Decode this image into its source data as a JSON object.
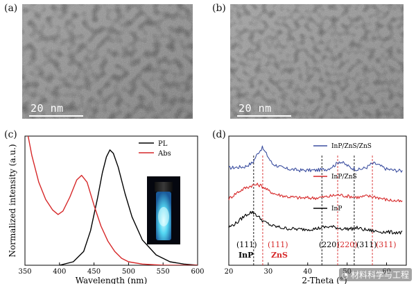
{
  "figure": {
    "panels": {
      "a": {
        "label": "(a)",
        "scalebar": "20 nm"
      },
      "b": {
        "label": "(b)",
        "scalebar": "20 nm"
      },
      "c": {
        "label": "(c)"
      },
      "d": {
        "label": "(d)"
      }
    },
    "watermark": "材料科学与工程"
  },
  "chart_data": [
    {
      "type": "line",
      "panel": "c",
      "xlabel": "Wavelength (nm)",
      "ylabel": "Normalized intensity (a.u.)",
      "xlim": [
        350,
        600
      ],
      "xticks": [
        350,
        400,
        450,
        500,
        550,
        600
      ],
      "ylim": [
        0,
        1.12
      ],
      "legend": "top-right",
      "series": [
        {
          "name": "PL",
          "color": "#000000",
          "x": [
            400,
            420,
            435,
            445,
            455,
            462,
            468,
            473,
            478,
            485,
            495,
            505,
            520,
            540,
            560,
            580,
            600
          ],
          "y": [
            0.0,
            0.03,
            0.12,
            0.3,
            0.58,
            0.8,
            0.94,
            1.0,
            0.97,
            0.85,
            0.62,
            0.42,
            0.22,
            0.09,
            0.03,
            0.01,
            0.0
          ]
        },
        {
          "name": "Abs",
          "color": "#d62728",
          "x": [
            352,
            360,
            370,
            380,
            390,
            398,
            405,
            415,
            425,
            432,
            440,
            450,
            460,
            470,
            480,
            490,
            500,
            520,
            550,
            600
          ],
          "y": [
            1.2,
            0.95,
            0.72,
            0.57,
            0.48,
            0.44,
            0.47,
            0.59,
            0.74,
            0.78,
            0.72,
            0.52,
            0.34,
            0.21,
            0.12,
            0.06,
            0.03,
            0.01,
            0.0,
            0.0
          ]
        }
      ]
    },
    {
      "type": "line",
      "panel": "d",
      "xlabel": "2-Theta (°)",
      "xlim": [
        20,
        65
      ],
      "xticks": [
        20,
        30,
        40,
        50,
        60
      ],
      "series": [
        {
          "name": "InP/ZnS/ZnS",
          "color": "#3c4fa0",
          "offset": 2.0,
          "x": [
            20,
            24,
            26,
            27.5,
            28.5,
            29.5,
            31,
            34,
            38,
            42,
            45,
            47,
            48,
            49,
            51,
            53,
            55,
            56,
            57,
            58,
            60,
            62,
            64
          ],
          "y": [
            0.18,
            0.22,
            0.35,
            0.7,
            0.85,
            0.65,
            0.32,
            0.16,
            0.1,
            0.1,
            0.14,
            0.28,
            0.4,
            0.34,
            0.18,
            0.12,
            0.2,
            0.3,
            0.33,
            0.27,
            0.14,
            0.1,
            0.08
          ]
        },
        {
          "name": "InP/ZnS",
          "color": "#d62728",
          "offset": 1.0,
          "x": [
            20,
            22,
            24,
            26,
            27,
            28,
            29,
            30,
            32,
            35,
            38,
            42,
            45,
            47,
            48,
            50,
            53,
            55,
            57,
            60,
            64
          ],
          "y": [
            0.15,
            0.35,
            0.5,
            0.6,
            0.62,
            0.6,
            0.52,
            0.42,
            0.3,
            0.22,
            0.18,
            0.18,
            0.22,
            0.27,
            0.28,
            0.24,
            0.2,
            0.24,
            0.22,
            0.12,
            0.05
          ]
        },
        {
          "name": "InP",
          "color": "#000000",
          "offset": 0.0,
          "x": [
            20,
            22,
            24,
            25.5,
            26.5,
            27.5,
            29,
            31,
            34,
            38,
            42,
            44,
            45.5,
            47,
            49,
            51,
            52.5,
            54,
            57,
            60,
            64
          ],
          "y": [
            0.2,
            0.35,
            0.58,
            0.7,
            0.68,
            0.55,
            0.38,
            0.25,
            0.17,
            0.13,
            0.15,
            0.2,
            0.22,
            0.2,
            0.15,
            0.15,
            0.18,
            0.13,
            0.07,
            0.04,
            0.02
          ]
        }
      ],
      "reference_lines": [
        {
          "name": "InP",
          "color": "#000000",
          "positions": [
            26.3,
            43.6,
            51.8
          ]
        },
        {
          "name": "ZnS",
          "color": "#d62728",
          "positions": [
            28.6,
            47.6,
            56.4
          ]
        }
      ],
      "annotations": {
        "inp_miller": "(111)",
        "inp_label": "InP",
        "zns_miller": "(111)",
        "zns_label": "ZnS",
        "inp_220": "(220)",
        "zns_220": "(220)",
        "inp_311": "(311)",
        "zns_311": "(311)"
      }
    }
  ]
}
